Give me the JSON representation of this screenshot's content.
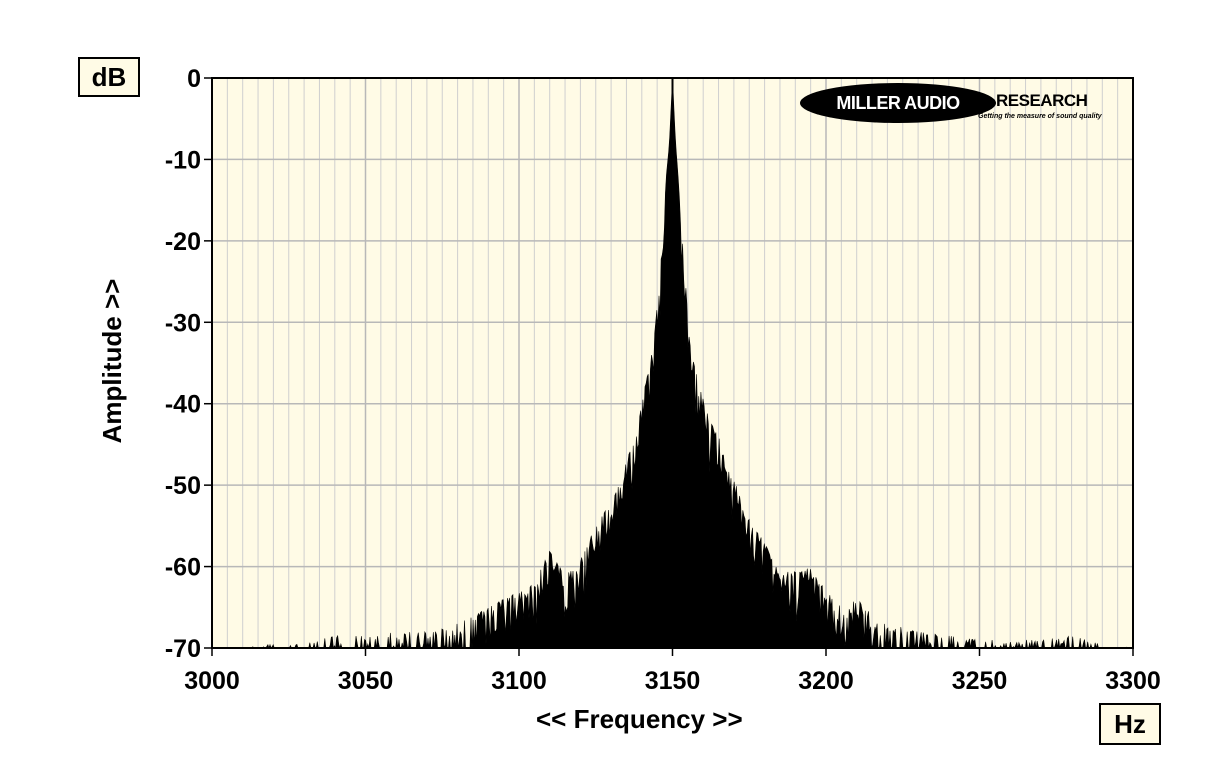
{
  "chart_data": {
    "type": "area",
    "title": "",
    "xlabel": "<< Frequency >>",
    "ylabel": "Amplitude >>",
    "x_unit": "Hz",
    "y_unit": "dB",
    "xlim": [
      3000,
      3300
    ],
    "ylim": [
      -70,
      0
    ],
    "x_ticks": [
      3000,
      3050,
      3100,
      3150,
      3200,
      3250,
      3300
    ],
    "y_ticks": [
      0,
      -10,
      -20,
      -30,
      -40,
      -50,
      -60,
      -70
    ],
    "grid": true,
    "legend": "none",
    "series": [
      {
        "x": [
          3000,
          3010,
          3020,
          3030,
          3040,
          3050,
          3060,
          3070,
          3080,
          3090,
          3100,
          3105,
          3110,
          3115,
          3120,
          3125,
          3130,
          3135,
          3138,
          3141,
          3144,
          3146,
          3148,
          3149,
          3150,
          3151,
          3152,
          3154,
          3156,
          3159,
          3162,
          3165,
          3168,
          3172,
          3176,
          3180,
          3185,
          3190,
          3195,
          3200,
          3205,
          3210,
          3220,
          3230,
          3240,
          3250,
          3260,
          3270,
          3280,
          3290,
          3300
        ],
        "y": [
          -70,
          -70,
          -69.5,
          -69.5,
          -68.5,
          -68.5,
          -68,
          -68,
          -67,
          -65,
          -63,
          -62,
          -58,
          -61,
          -59,
          -55,
          -52,
          -47,
          -44,
          -38,
          -32,
          -23,
          -12,
          -8,
          0,
          -8,
          -13,
          -24,
          -33,
          -38,
          -42,
          -44,
          -48,
          -51,
          -55,
          -57,
          -61,
          -60,
          -60,
          -63,
          -65,
          -64,
          -67,
          -68,
          -68.5,
          -69,
          -69,
          -69,
          -68.5,
          -69.5,
          -70
        ]
      }
    ]
  },
  "logo": {
    "name_part1": "MILLER AUDIO",
    "name_part2": "RESEARCH",
    "tagline": "Getting the measure of sound quality"
  },
  "colors": {
    "plot_background": "#fffbe6",
    "grid": "#b8b8b8",
    "fill": "#000000"
  }
}
